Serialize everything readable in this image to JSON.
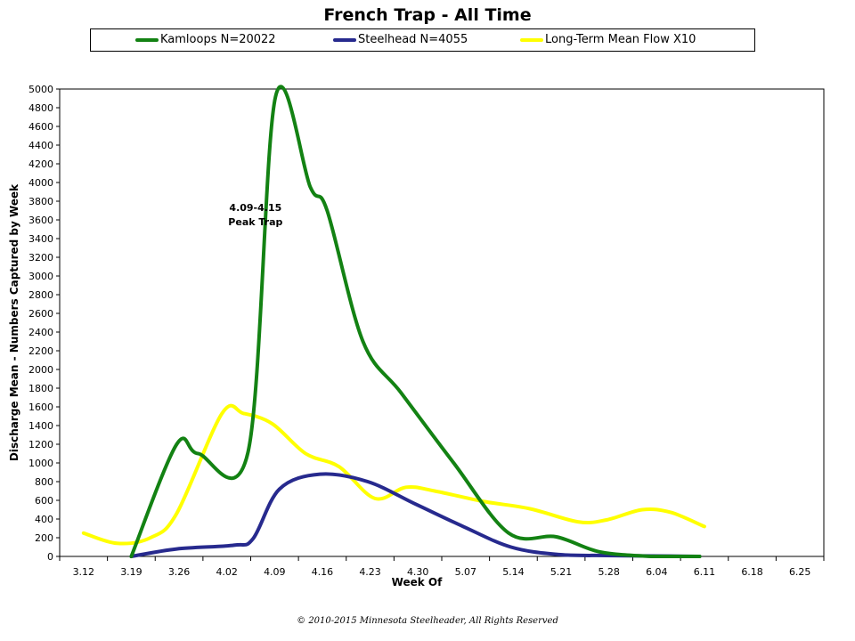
{
  "chart_data": {
    "type": "line",
    "title": "French Trap - All Time",
    "xlabel": "Week Of",
    "ylabel": "Discharge Mean - Numbers Captured by Week",
    "categories": [
      "3.12",
      "3.19",
      "3.26",
      "4.02",
      "4.09",
      "4.16",
      "4.23",
      "4.30",
      "5.07",
      "5.14",
      "5.21",
      "5.28",
      "6.04",
      "6.11",
      "6.18",
      "6.25"
    ],
    "ylim": [
      0,
      5000
    ],
    "yticks": [
      0,
      200,
      400,
      600,
      800,
      1000,
      1200,
      1400,
      1600,
      1800,
      2000,
      2200,
      2400,
      2600,
      2800,
      3000,
      3200,
      3400,
      3600,
      3800,
      4000,
      4200,
      4400,
      4600,
      4800,
      5000
    ],
    "grid": false,
    "legend_position": "top",
    "series": [
      {
        "name": "Kamloops N=20022",
        "color": "#138213",
        "x": [
          1,
          1.95,
          2.4,
          3.45,
          4.02,
          4.75,
          5.1,
          5.85,
          6.65,
          7.75,
          8.9,
          9.9,
          10.8,
          11.9,
          12.9
        ],
        "y": [
          0,
          1200,
          1100,
          1130,
          4920,
          3950,
          3700,
          2300,
          1750,
          1000,
          250,
          210,
          50,
          0,
          0
        ]
      },
      {
        "name": "Steelhead N=4055",
        "color": "#272a8e",
        "x": [
          1,
          1.95,
          3.15,
          3.55,
          4.1,
          4.95,
          5.95,
          6.95,
          7.95,
          8.95,
          9.95,
          10.95,
          11.9,
          12.9
        ],
        "y": [
          0,
          80,
          120,
          190,
          720,
          880,
          800,
          560,
          320,
          100,
          20,
          10,
          5,
          0
        ]
      },
      {
        "name": "Long-Term Mean Flow X10",
        "color": "#ffff00",
        "x": [
          0,
          0.7,
          1.4,
          1.95,
          2.9,
          3.35,
          3.95,
          4.65,
          5.35,
          6.1,
          6.75,
          7.35,
          8.35,
          9.35,
          10.35,
          10.95,
          11.7,
          12.3,
          13
        ],
        "y": [
          250,
          140,
          200,
          460,
          1530,
          1530,
          1420,
          1100,
          960,
          620,
          740,
          700,
          590,
          510,
          370,
          390,
          500,
          470,
          320
        ]
      }
    ],
    "annotations": [
      {
        "lines": [
          "4.09-4.15",
          "Peak Trap"
        ],
        "x": 3.6,
        "y": 3580
      }
    ]
  },
  "copyright": "© 2010-2015 Minnesota Steelheader, All Rights Reserved"
}
